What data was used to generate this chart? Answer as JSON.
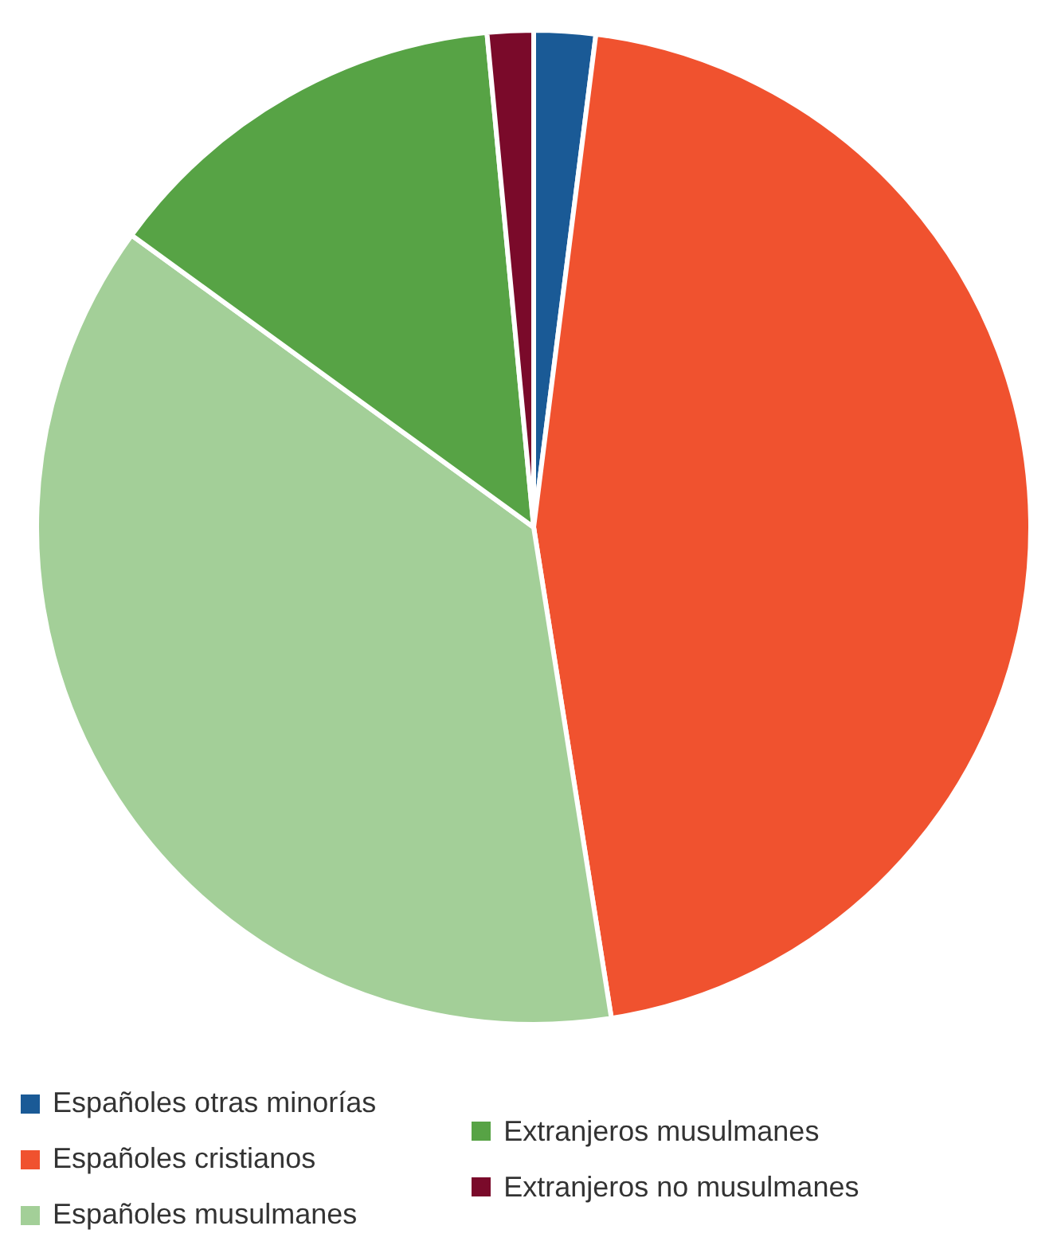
{
  "chart_data": {
    "type": "pie",
    "categories": [
      "Españoles otras minorías",
      "Españoles cristianos",
      "Españoles musulmanes",
      "Extranjeros musulmanes",
      "Extranjeros no musulmanes"
    ],
    "values": [
      2,
      45.5,
      37.5,
      13.5,
      1.5
    ],
    "colors": [
      "#1a5a96",
      "#f0522f",
      "#a3cf98",
      "#57a345",
      "#7a0a2a"
    ],
    "legend": "bottom"
  }
}
